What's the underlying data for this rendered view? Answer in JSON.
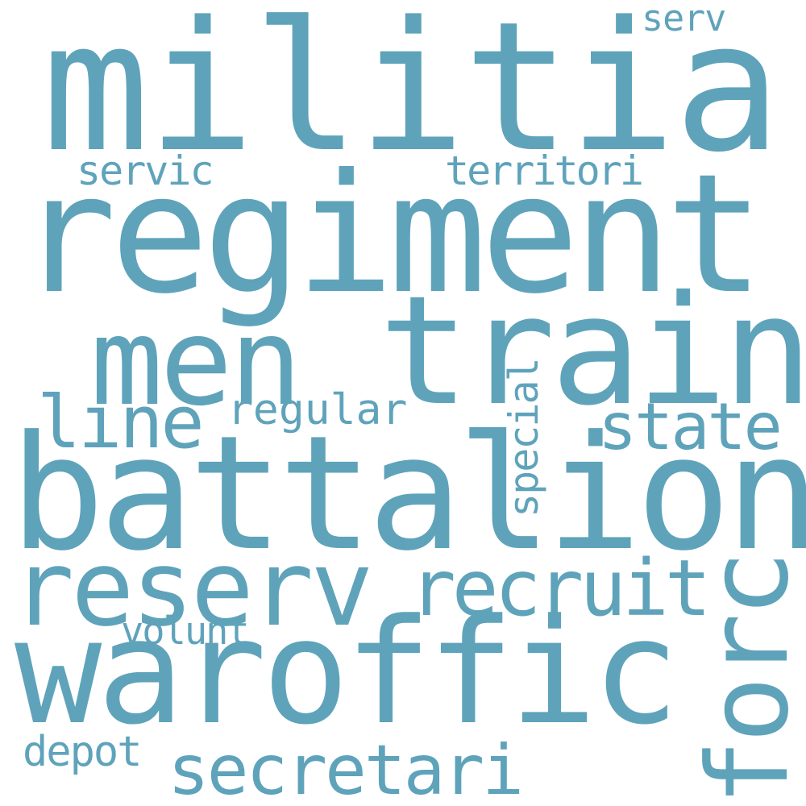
{
  "word_cloud": {
    "color": "#5fa3bb",
    "background": "#ffffff",
    "words": {
      "militia": "militia",
      "regiment": "regiment",
      "men": "men",
      "train": "train",
      "line": "line",
      "regular": "regular",
      "state": "state",
      "battalion": "battalion",
      "reserv": "reserv",
      "recruit": "recruit",
      "volunt": "volunt",
      "waroffic": "waroffic",
      "secretari": "secretari",
      "depot": "depot",
      "servic": "servic",
      "territori": "territori",
      "serv": "serv",
      "special": "special",
      "forc": "forc"
    }
  }
}
